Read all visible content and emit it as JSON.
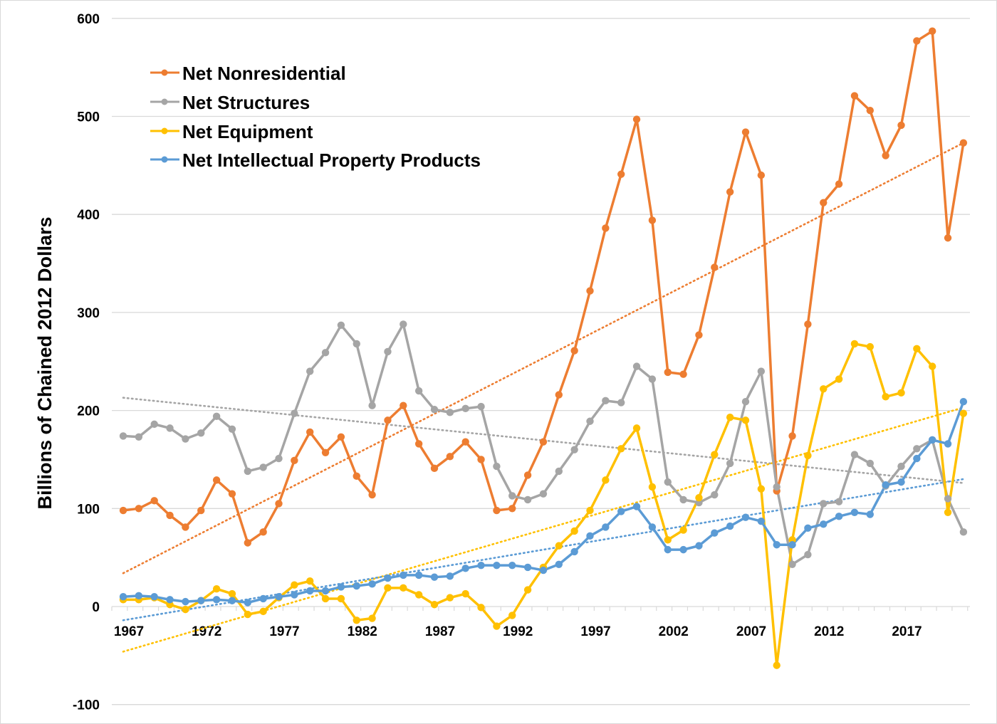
{
  "chart_data": {
    "type": "line",
    "title": "",
    "xlabel": "",
    "ylabel": "Billions of Chained 2012 Dollars",
    "ylim": [
      -100,
      600
    ],
    "yticks": [
      -100,
      0,
      100,
      200,
      300,
      400,
      500,
      600
    ],
    "ytick_labels": [
      "-100",
      "0",
      "100",
      "200",
      "300",
      "400",
      "500",
      "600"
    ],
    "xtick_labels": [
      "1967",
      "1972",
      "1977",
      "1982",
      "1987",
      "1992",
      "1997",
      "2002",
      "2007",
      "2012",
      "2017"
    ],
    "grid": "horizontal",
    "legend_position": "top-left",
    "x": [
      1967,
      1968,
      1969,
      1970,
      1971,
      1972,
      1973,
      1974,
      1975,
      1976,
      1977,
      1978,
      1979,
      1980,
      1981,
      1982,
      1983,
      1984,
      1985,
      1986,
      1987,
      1988,
      1989,
      1990,
      1991,
      1992,
      1993,
      1994,
      1995,
      1996,
      1997,
      1998,
      1999,
      2000,
      2001,
      2002,
      2003,
      2004,
      2005,
      2006,
      2007,
      2008,
      2009,
      2010,
      2011,
      2012,
      2013,
      2014,
      2015,
      2016,
      2017,
      2018,
      2019,
      2020,
      2021
    ],
    "series": [
      {
        "name": "Net Nonresidential",
        "color": "#ED7D31",
        "values": [
          98,
          100,
          108,
          93,
          81,
          98,
          129,
          115,
          65,
          76,
          105,
          149,
          178,
          157,
          173,
          133,
          114,
          190,
          205,
          166,
          141,
          153,
          168,
          150,
          98,
          100,
          134,
          168,
          216,
          261,
          322,
          386,
          441,
          497,
          394,
          239,
          237,
          277,
          346,
          423,
          484,
          440,
          118,
          174,
          288,
          412,
          431,
          521,
          506,
          460,
          491,
          577,
          587,
          376,
          473
        ],
        "trend": [
          34,
          473
        ]
      },
      {
        "name": "Net Structures",
        "color": "#A5A5A5",
        "values": [
          174,
          173,
          186,
          182,
          171,
          177,
          194,
          181,
          138,
          142,
          151,
          197,
          240,
          259,
          287,
          268,
          205,
          260,
          288,
          220,
          201,
          198,
          202,
          204,
          143,
          113,
          109,
          115,
          138,
          160,
          189,
          210,
          208,
          245,
          232,
          127,
          109,
          106,
          114,
          146,
          209,
          240,
          122,
          43,
          53,
          105,
          107,
          155,
          146,
          123,
          143,
          161,
          170,
          110,
          76
        ],
        "trend": [
          213,
          126
        ]
      },
      {
        "name": "Net Equipment",
        "color": "#FFC000",
        "values": [
          7,
          7,
          9,
          2,
          -3,
          6,
          18,
          13,
          -8,
          -5,
          9,
          22,
          26,
          8,
          8,
          -14,
          -12,
          19,
          19,
          12,
          2,
          9,
          13,
          -1,
          -20,
          -9,
          17,
          40,
          62,
          77,
          98,
          129,
          161,
          182,
          122,
          68,
          78,
          111,
          155,
          193,
          190,
          120,
          -60,
          68,
          154,
          222,
          232,
          268,
          265,
          214,
          218,
          263,
          245,
          96,
          197
        ],
        "trend": [
          -46,
          203
        ]
      },
      {
        "name": " Net Intellectual Property Products",
        "color": "#5B9BD5",
        "values": [
          10,
          11,
          10,
          7,
          5,
          6,
          7,
          6,
          4,
          8,
          10,
          12,
          16,
          16,
          20,
          21,
          23,
          29,
          32,
          32,
          30,
          31,
          39,
          42,
          42,
          42,
          40,
          37,
          43,
          56,
          72,
          81,
          97,
          102,
          81,
          58,
          58,
          62,
          75,
          82,
          91,
          87,
          63,
          63,
          80,
          84,
          92,
          96,
          94,
          124,
          127,
          151,
          170,
          166,
          209
        ],
        "trend": [
          -14,
          130
        ]
      }
    ]
  }
}
